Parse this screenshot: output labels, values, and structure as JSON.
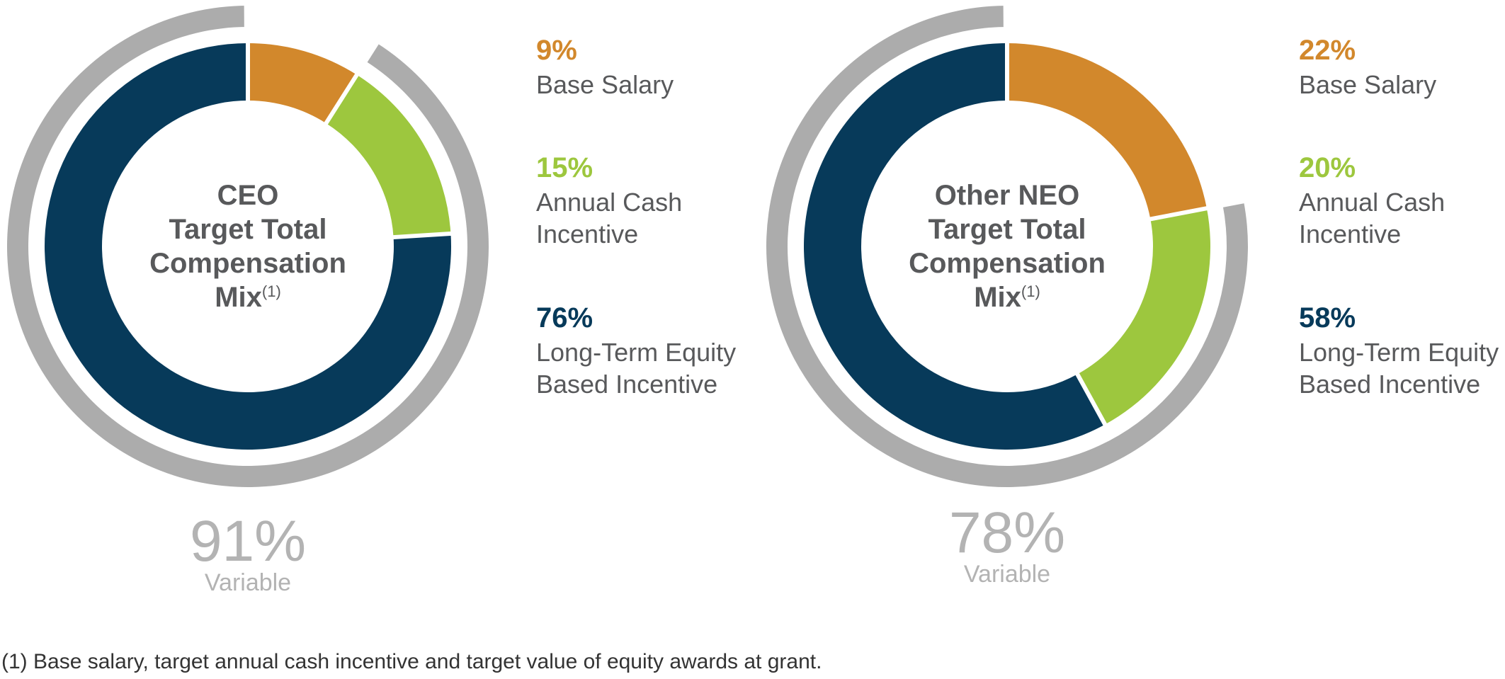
{
  "colors": {
    "base_salary": "#D2882C",
    "annual_cash": "#9DC73E",
    "equity": "#073A5A",
    "variable_ring": "#ACACAC",
    "center_text": "#58595B",
    "variable_text": "#B3B3B3",
    "legend_text": "#58595B"
  },
  "chart_data": [
    {
      "type": "pie",
      "id": "ceo",
      "title_lines": [
        "CEO",
        "Target Total",
        "Compensation"
      ],
      "title_last": "Mix",
      "title_sup": "(1)",
      "categories": [
        "Base Salary",
        "Annual Cash Incentive",
        "Long-Term Equity Based Incentive"
      ],
      "values": [
        9,
        15,
        76
      ],
      "legend": [
        {
          "pct": "9%",
          "lines": [
            "Base Salary"
          ]
        },
        {
          "pct": "15%",
          "lines": [
            "Annual Cash",
            "Incentive"
          ]
        },
        {
          "pct": "76%",
          "lines": [
            "Long-Term Equity",
            "Based Incentive"
          ]
        }
      ],
      "variable_value": 91,
      "variable_pct": "91%",
      "variable_label": "Variable"
    },
    {
      "type": "pie",
      "id": "neo",
      "title_lines": [
        "Other NEO",
        "Target Total",
        "Compensation"
      ],
      "title_last": "Mix",
      "title_sup": "(1)",
      "categories": [
        "Base Salary",
        "Annual Cash Incentive",
        "Long-Term Equity Based Incentive"
      ],
      "values": [
        22,
        20,
        58
      ],
      "legend": [
        {
          "pct": "22%",
          "lines": [
            "Base Salary"
          ]
        },
        {
          "pct": "20%",
          "lines": [
            "Annual Cash",
            "Incentive"
          ]
        },
        {
          "pct": "58%",
          "lines": [
            "Long-Term Equity",
            "Based Incentive"
          ]
        }
      ],
      "variable_value": 78,
      "variable_pct": "78%",
      "variable_label": "Variable"
    }
  ],
  "footnote": "(1) Base salary, target annual cash incentive and target value of equity awards at grant."
}
